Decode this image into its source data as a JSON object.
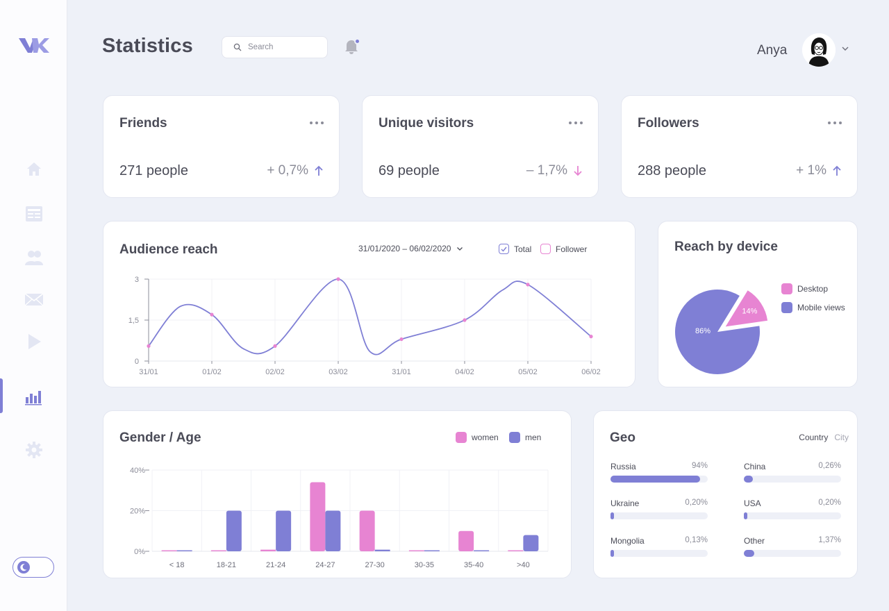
{
  "app": {
    "logo_name": "vk-logo"
  },
  "header": {
    "title": "Statistics",
    "search_placeholder": "Search",
    "user_name": "Anya",
    "notification_dot": true
  },
  "sidebar": {
    "items": [
      {
        "id": "home",
        "icon": "home-icon"
      },
      {
        "id": "news",
        "icon": "newspaper-icon"
      },
      {
        "id": "friends",
        "icon": "people-icon"
      },
      {
        "id": "messages",
        "icon": "envelope-icon"
      },
      {
        "id": "video",
        "icon": "play-icon"
      },
      {
        "id": "statistics",
        "icon": "bar-chart-icon",
        "active": true
      },
      {
        "id": "settings",
        "icon": "gear-icon"
      }
    ],
    "theme_toggle_icon": "moon-icon"
  },
  "stats": [
    {
      "title": "Friends",
      "value": "271 people",
      "change": "+ 0,7%",
      "direction": "up"
    },
    {
      "title": "Unique visitors",
      "value": "69 people",
      "change": "– 1,7%",
      "direction": "down"
    },
    {
      "title": "Followers",
      "value": "288 people",
      "change": "+ 1%",
      "direction": "up"
    }
  ],
  "audience": {
    "title": "Audience reach",
    "date_range": "31/01/2020 – 06/02/2020",
    "legend_total": "Total",
    "legend_follower": "Follower"
  },
  "device": {
    "title": "Reach by device",
    "legend_desktop": "Desktop",
    "legend_mobile": "Mobile views"
  },
  "gender": {
    "title": "Gender / Age",
    "legend_women": "women",
    "legend_men": "men"
  },
  "geo": {
    "title": "Geo",
    "tab_country": "Country",
    "tab_city": "City",
    "items": [
      {
        "label": "Russia",
        "value": "94%",
        "fraction": 0.92
      },
      {
        "label": "China",
        "value": "0,26%",
        "fraction": 0.09
      },
      {
        "label": "Ukraine",
        "value": "0,20%",
        "fraction": 0.03
      },
      {
        "label": "USA",
        "value": "0,20%",
        "fraction": 0.03
      },
      {
        "label": "Mongolia",
        "value": "0,13%",
        "fraction": 0.03
      },
      {
        "label": "Other",
        "value": "1,37%",
        "fraction": 0.11
      }
    ]
  },
  "colors": {
    "accent": "#7f7fd5",
    "pink": "#e784d2",
    "text": "#4a4b57",
    "muted": "#8b8c98"
  },
  "chart_data": [
    {
      "type": "line",
      "title": "Audience reach",
      "x": [
        "31/01",
        "01/02",
        "02/02",
        "03/02",
        "31/01",
        "04/02",
        "05/02",
        "06/02"
      ],
      "x_numeric": [
        0,
        1,
        2,
        3,
        4,
        5,
        6,
        7
      ],
      "yticks": [
        "0",
        "1,5",
        "3"
      ],
      "ylim": [
        0,
        3
      ],
      "series": [
        {
          "name": "Total",
          "color": "#7f7fd5",
          "points": [
            [
              0,
              0.55
            ],
            [
              0.45,
              0.72
            ],
            [
              1,
              0.45
            ],
            [
              2,
              0.72
            ],
            [
              3,
              0.35
            ],
            [
              3.4,
              0.72
            ],
            [
              4,
              0.8
            ],
            [
              5,
              0.55
            ],
            [
              6,
              0.33
            ],
            [
              7,
              1.25
            ],
            [
              8,
              1.9
            ],
            [
              9,
              2.6
            ],
            [
              10,
              3.0
            ],
            [
              11,
              2.65
            ]
          ],
          "markers": [
            [
              0,
              0.55
            ],
            [
              1,
              1.7
            ],
            [
              2,
              0.55
            ],
            [
              3,
              3.0
            ],
            [
              4,
              0.8
            ],
            [
              5,
              1.5
            ],
            [
              6,
              2.8
            ],
            [
              7,
              0.9
            ]
          ]
        }
      ],
      "grid": true
    },
    {
      "type": "pie",
      "title": "Reach by device",
      "labels": [
        "Desktop",
        "Mobile views"
      ],
      "values": [
        14,
        86
      ],
      "value_labels": [
        "14%",
        "86%"
      ],
      "colors": [
        "#e784d2",
        "#7f7fd5"
      ],
      "legend": "right"
    },
    {
      "type": "bar",
      "title": "Gender / Age",
      "categories": [
        "< 18",
        "18-21",
        "21-24",
        "24-27",
        "27-30",
        "30-35",
        "35-40",
        ">40"
      ],
      "yticks": [
        "0%",
        "20%",
        "40%"
      ],
      "ylim": [
        0,
        40
      ],
      "series": [
        {
          "name": "women",
          "color": "#e784d2",
          "values": [
            0.5,
            0.5,
            0.8,
            34,
            20,
            0.5,
            10,
            0.5
          ]
        },
        {
          "name": "men",
          "color": "#7f7fd5",
          "values": [
            0.5,
            20,
            20,
            20,
            0.8,
            0.5,
            0.5,
            8
          ]
        }
      ],
      "grid": true,
      "legend": "top-right"
    }
  ]
}
